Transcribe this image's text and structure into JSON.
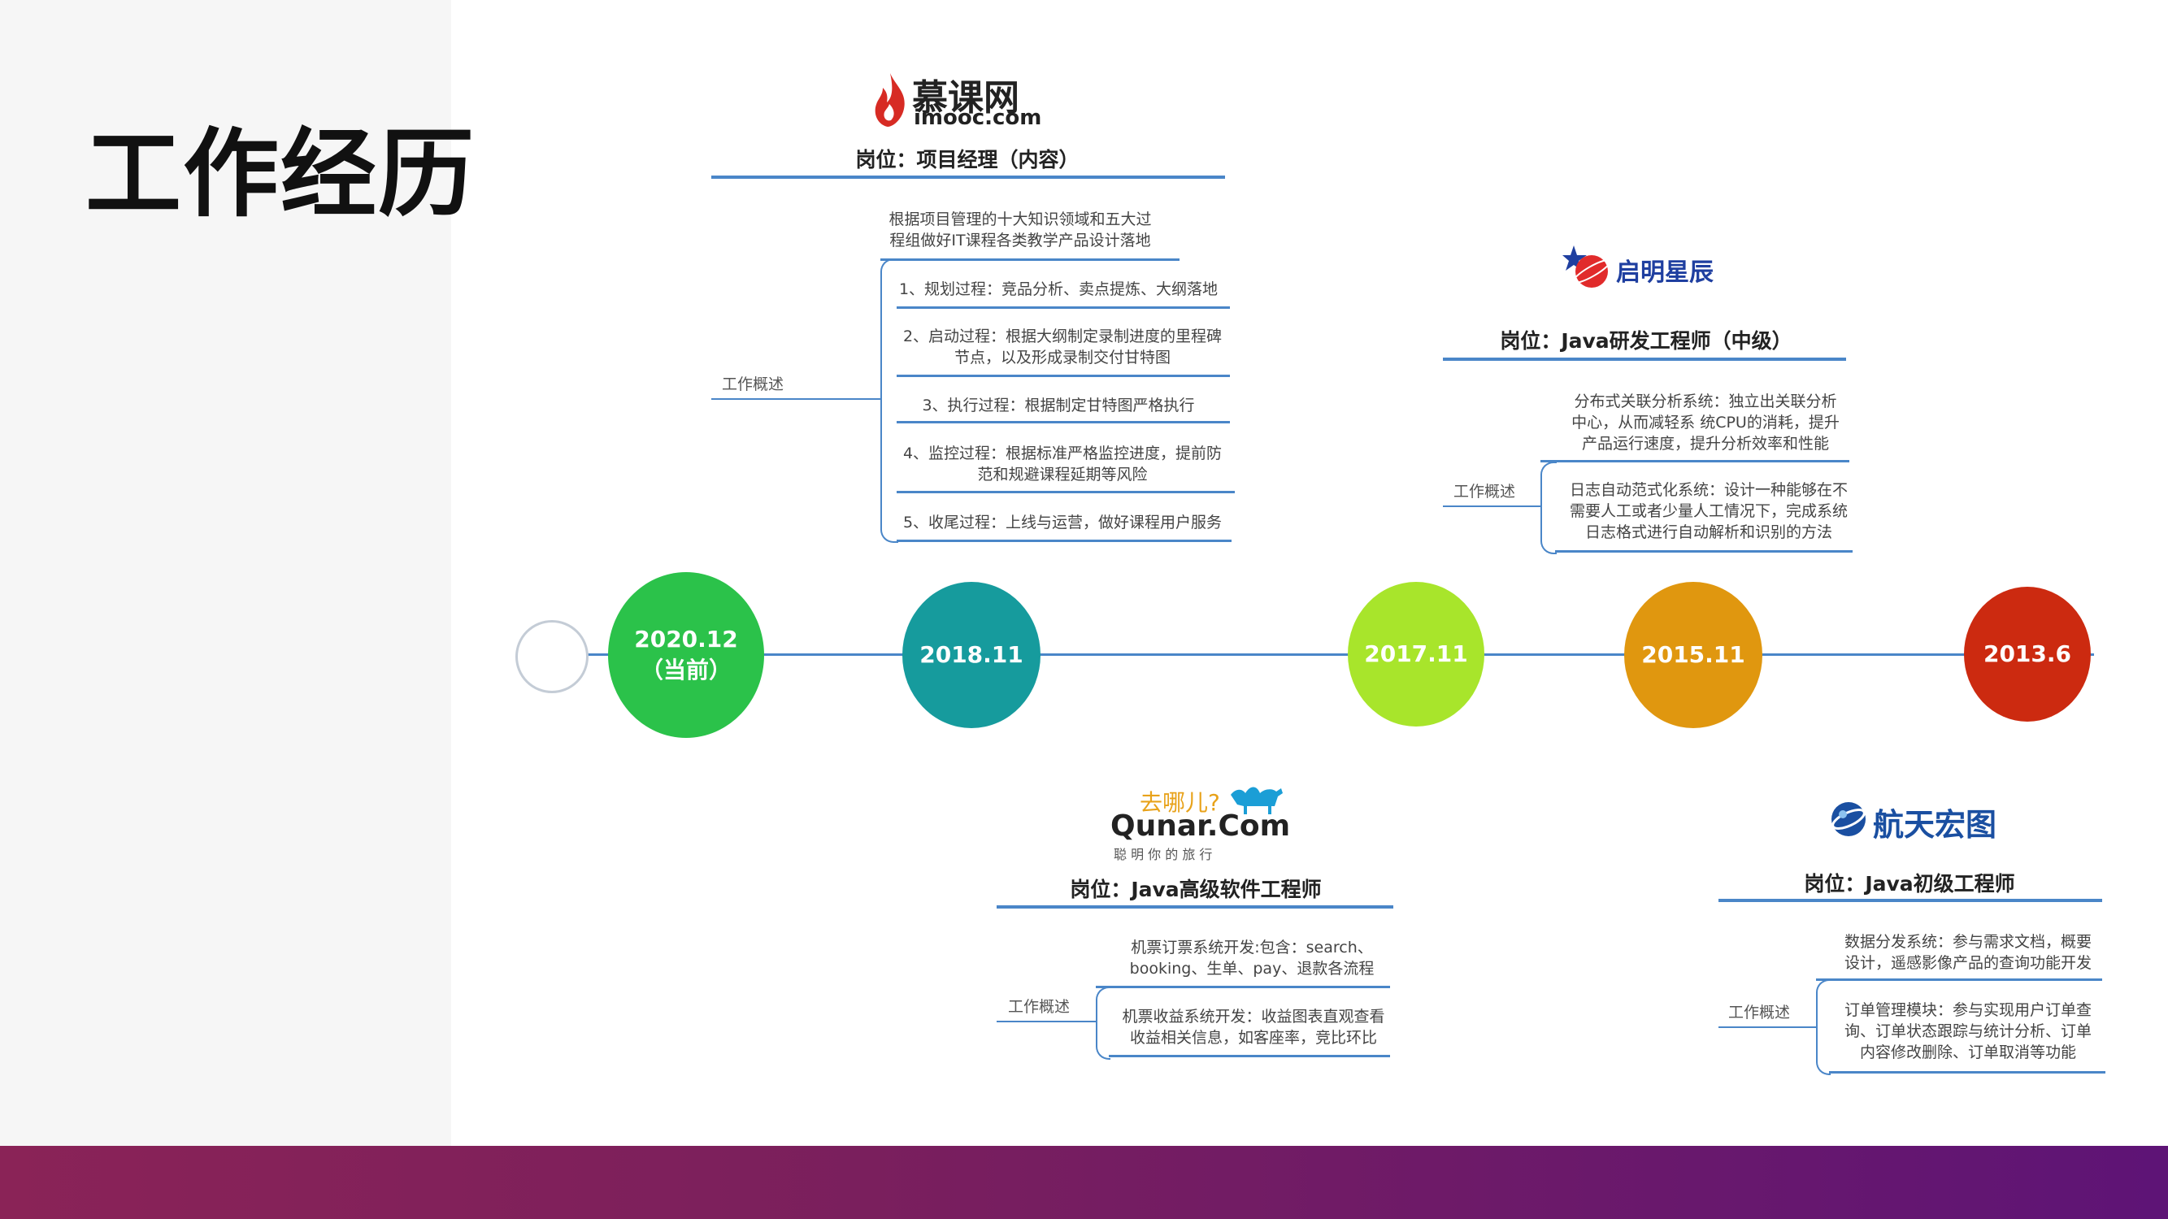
{
  "title": "工作经历",
  "timeline": [
    {
      "date": "2020.12",
      "sub": "（当前）",
      "color": "#2bc24a"
    },
    {
      "date": "2018.11",
      "color": "#169b9d"
    },
    {
      "date": "2017.11",
      "color": "#a8e52b"
    },
    {
      "date": "2015.11",
      "color": "#e0970f"
    },
    {
      "date": "2013.6",
      "color": "#cc2a10"
    }
  ],
  "imooc": {
    "logo_cn": "慕课网",
    "logo_en": "imooc.com",
    "position": "岗位：项目经理（内容）",
    "summary_label": "工作概述",
    "items": [
      [
        "根据项目管理的十大知识领域和五大过",
        "程组做好IT课程各类教学产品设计落地"
      ],
      [
        "1、规划过程：竞品分析、卖点提炼、大纲落地"
      ],
      [
        "2、启动过程：根据大纲制定录制进度的里程碑",
        "节点，以及形成录制交付甘特图"
      ],
      [
        "3、执行过程：根据制定甘特图严格执行"
      ],
      [
        "4、监控过程：根据标准严格监控进度，提前防",
        "范和规避课程延期等风险"
      ],
      [
        "5、收尾过程：上线与运营，做好课程用户服务"
      ]
    ]
  },
  "qiming": {
    "logo_cn": "启明星辰",
    "position": "岗位：Java研发工程师（中级）",
    "summary_label": "工作概述",
    "items": [
      [
        "分布式关联分析系统：独立出关联分析",
        "中心，从而减轻系 统CPU的消耗，提升",
        "产品运行速度，提升分析效率和性能"
      ],
      [
        "日志自动范式化系统：设计一种能够在不",
        "需要人工或者少量人工情况下，完成系统",
        "日志格式进行自动解析和识别的方法"
      ]
    ]
  },
  "qunar": {
    "logo_top": "去哪儿?",
    "logo_main": "Qunar.Com",
    "logo_sub": "聪 明 你 的 旅 行",
    "position": "岗位：Java高级软件工程师",
    "summary_label": "工作概述",
    "items": [
      [
        "机票订票系统开发:包含：search、",
        "booking、生单、pay、退款各流程"
      ],
      [
        "机票收益系统开发：收益图表直观查看",
        "收益相关信息，如客座率，竞比环比"
      ]
    ]
  },
  "hangtian": {
    "logo_cn": "航天宏图",
    "position": "岗位：Java初级工程师",
    "summary_label": "工作概述",
    "items": [
      [
        "数据分发系统：参与需求文档，概要",
        "设计，遥感影像产品的查询功能开发"
      ],
      [
        "订单管理模块：参与实现用户订单查",
        "询、订单状态跟踪与统计分析、订单",
        "内容修改删除、订单取消等功能"
      ]
    ]
  }
}
